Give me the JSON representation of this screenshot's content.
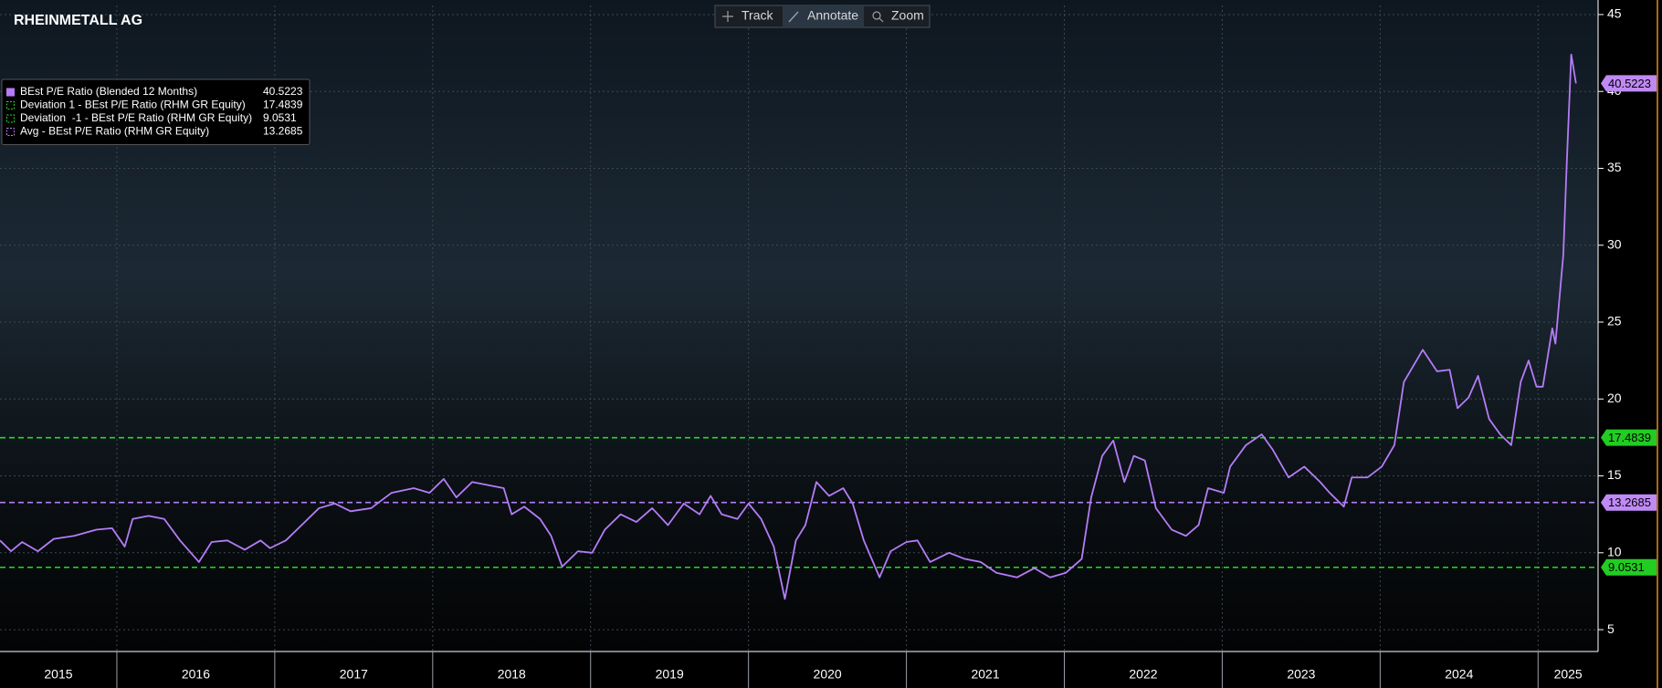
{
  "toolbar": [
    "Track",
    "Annotate",
    "Zoom"
  ],
  "chart_data": {
    "type": "line",
    "title": "RHEINMETALL AG",
    "x": [
      2015.26,
      2015.33,
      2015.4,
      2015.5,
      2015.6,
      2015.73,
      2015.87,
      2015.97,
      2016.05,
      2016.1,
      2016.2,
      2016.3,
      2016.4,
      2016.52,
      2016.6,
      2016.7,
      2016.81,
      2016.91,
      2016.97,
      2017.07,
      2017.17,
      2017.28,
      2017.38,
      2017.48,
      2017.61,
      2017.74,
      2017.88,
      2017.98,
      2018.07,
      2018.15,
      2018.25,
      2018.35,
      2018.45,
      2018.5,
      2018.58,
      2018.68,
      2018.75,
      2018.82,
      2018.92,
      2019.01,
      2019.09,
      2019.19,
      2019.29,
      2019.39,
      2019.49,
      2019.59,
      2019.69,
      2019.76,
      2019.83,
      2019.93,
      2020.0,
      2020.08,
      2020.16,
      2020.23,
      2020.3,
      2020.36,
      2020.43,
      2020.51,
      2020.6,
      2020.66,
      2020.73,
      2020.83,
      2020.9,
      2021.0,
      2021.07,
      2021.15,
      2021.27,
      2021.37,
      2021.47,
      2021.57,
      2021.7,
      2021.81,
      2021.91,
      2022.01,
      2022.11,
      2022.17,
      2022.24,
      2022.31,
      2022.38,
      2022.44,
      2022.51,
      2022.58,
      2022.68,
      2022.77,
      2022.85,
      2022.91,
      2023.01,
      2023.05,
      2023.15,
      2023.25,
      2023.32,
      2023.42,
      2023.52,
      2023.62,
      2023.68,
      2023.77,
      2023.82,
      2023.92,
      2024.01,
      2024.09,
      2024.15,
      2024.27,
      2024.36,
      2024.44,
      2024.49,
      2024.56,
      2024.62,
      2024.69,
      2024.76,
      2024.83,
      2024.89,
      2024.94,
      2024.99,
      2025.03,
      2025.09,
      2025.11,
      2025.16,
      2025.18,
      2025.21,
      2025.24
    ],
    "series": [
      {
        "name": "BEst P/E Ratio (Blended 12 Months)",
        "color": "#b57cf7",
        "values": [
          10.8,
          10.1,
          10.7,
          10.1,
          10.9,
          11.1,
          11.5,
          11.6,
          10.4,
          12.2,
          12.4,
          12.2,
          10.8,
          9.4,
          10.7,
          10.8,
          10.2,
          10.8,
          10.3,
          10.8,
          11.8,
          12.9,
          13.2,
          12.7,
          12.9,
          13.9,
          14.2,
          13.9,
          14.8,
          13.6,
          14.6,
          14.4,
          14.2,
          12.5,
          13.0,
          12.2,
          11.1,
          9.1,
          10.1,
          10.0,
          11.5,
          12.5,
          12.0,
          12.9,
          11.8,
          13.2,
          12.5,
          13.7,
          12.5,
          12.2,
          13.2,
          12.2,
          10.4,
          7.0,
          10.8,
          11.8,
          14.6,
          13.7,
          14.2,
          13.2,
          10.8,
          8.4,
          10.1,
          10.7,
          10.8,
          9.4,
          10.0,
          9.6,
          9.4,
          8.7,
          8.4,
          9.0,
          8.4,
          8.7,
          9.6,
          13.6,
          16.3,
          17.3,
          14.6,
          16.3,
          16.0,
          12.9,
          11.5,
          11.1,
          11.8,
          14.2,
          13.9,
          15.6,
          17.0,
          17.7,
          16.7,
          14.9,
          15.6,
          14.6,
          13.9,
          13.0,
          14.9,
          14.9,
          15.6,
          17.0,
          21.1,
          23.2,
          21.8,
          21.9,
          19.4,
          20.1,
          21.5,
          18.7,
          17.7,
          17.0,
          21.1,
          22.5,
          20.8,
          20.8,
          24.6,
          23.6,
          29.4,
          34.9,
          42.4,
          40.5223
        ]
      }
    ],
    "reference_lines": [
      {
        "name": "Deviation 1 - BEst P/E Ratio (RHM GR Equity)",
        "value": 17.4839,
        "color": "#22dd22"
      },
      {
        "name": "Deviation  -1 - BEst P/E Ratio (RHM GR Equity)",
        "value": 9.0531,
        "color": "#22dd22"
      },
      {
        "name": "Avg - BEst P/E Ratio (RHM GR Equity)",
        "value": 13.2685,
        "color": "#b57cf7"
      }
    ],
    "legend_order": [
      [
        "series",
        0
      ],
      [
        "reference_lines",
        0
      ],
      [
        "reference_lines",
        1
      ],
      [
        "reference_lines",
        2
      ]
    ],
    "xlim": [
      2015.26,
      2025.38
    ],
    "xticks": [
      2016,
      2017,
      2018,
      2019,
      2020,
      2021,
      2022,
      2023,
      2024,
      2025
    ],
    "year_labels": [
      "2015",
      "2016",
      "2017",
      "2018",
      "2019",
      "2020",
      "2021",
      "2022",
      "2023",
      "2024",
      "2025"
    ],
    "ylim": [
      3.58,
      45.59
    ],
    "yticks": [
      5,
      10,
      15,
      20,
      25,
      30,
      35,
      40,
      45
    ],
    "grid": true,
    "legend": "upper left"
  }
}
